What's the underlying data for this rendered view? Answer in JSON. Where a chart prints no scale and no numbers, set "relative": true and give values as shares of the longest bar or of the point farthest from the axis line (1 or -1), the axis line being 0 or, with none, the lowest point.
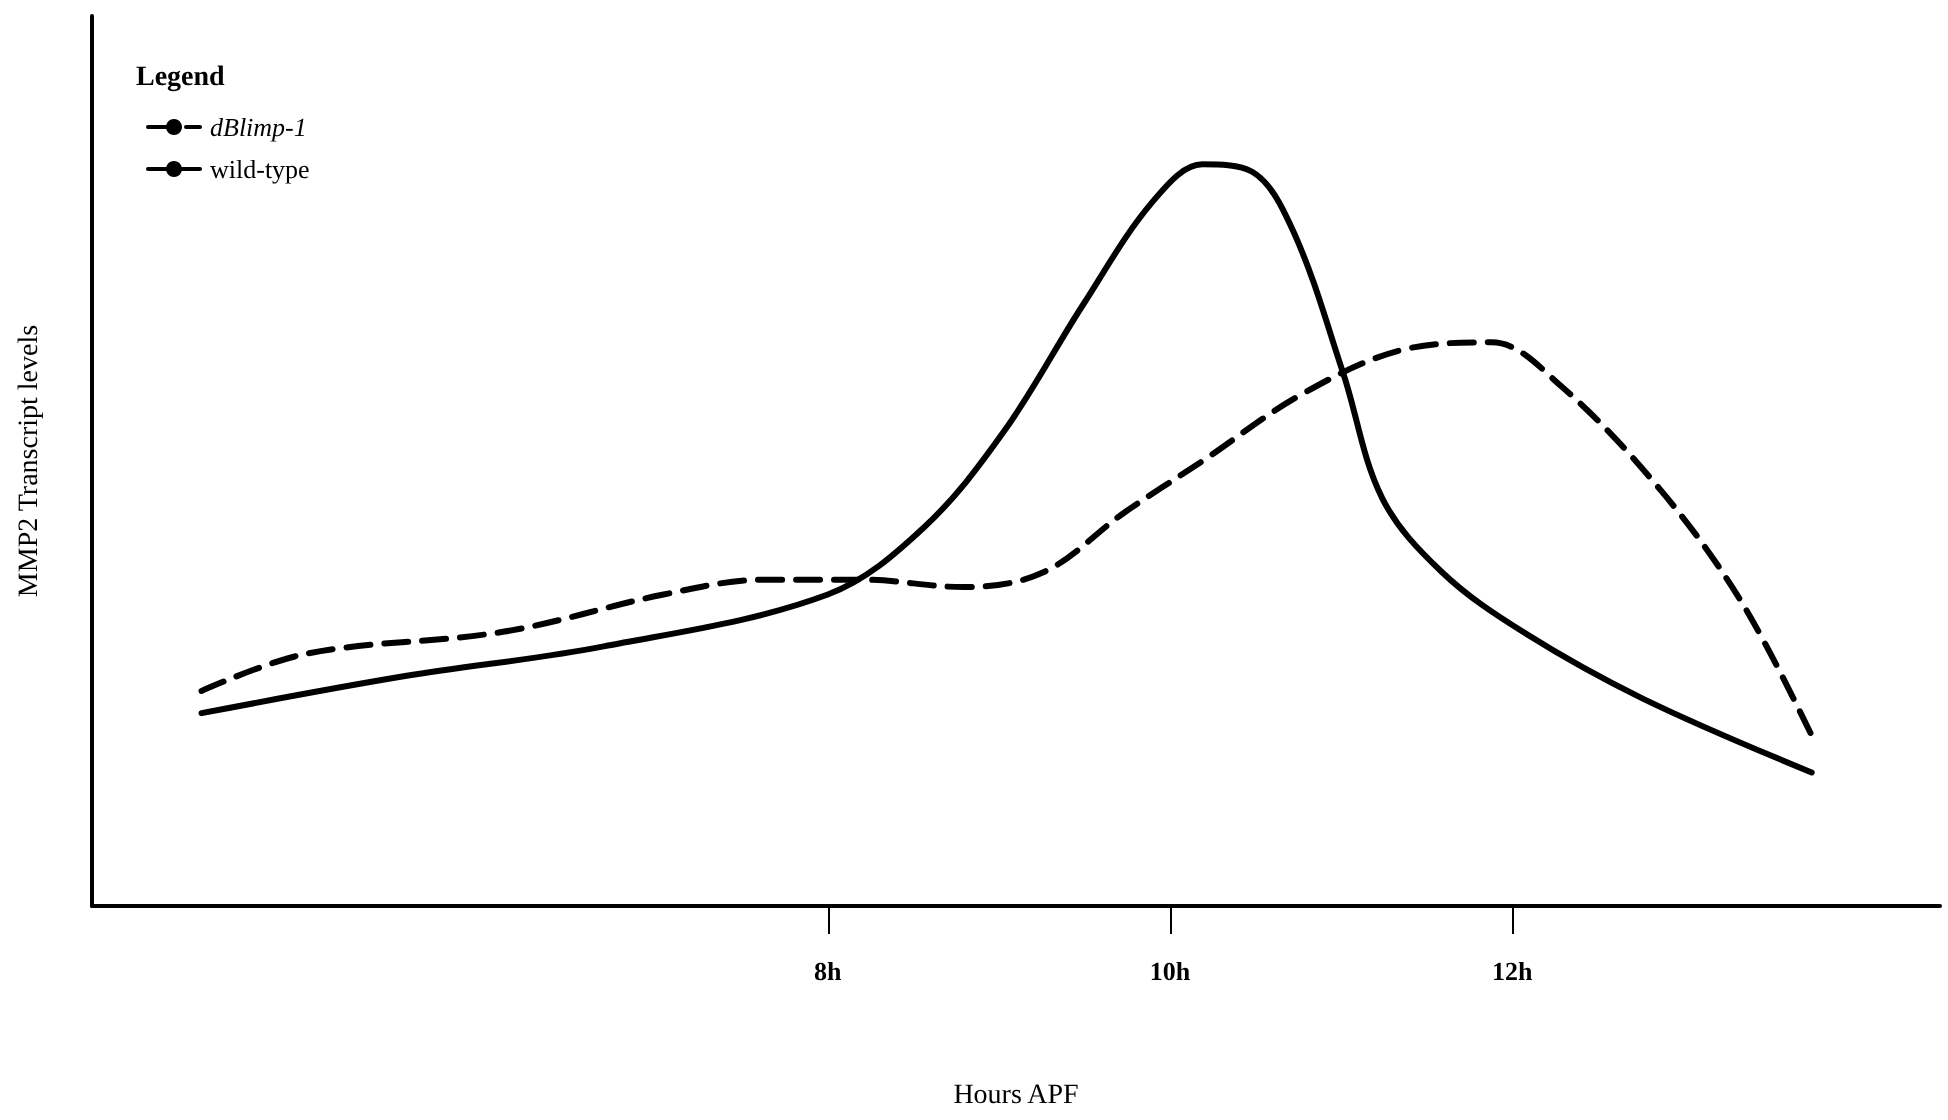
{
  "chart_data": {
    "type": "line",
    "relative": true,
    "xlabel": "Hours APF",
    "ylabel": "MMP2 Transcript levels",
    "legend_title": "Legend",
    "legend": "top left",
    "grid": false,
    "marker": "none",
    "xlim": [
      3.7,
      14.5
    ],
    "xticks": [
      {
        "value": 8,
        "label": "8h"
      },
      {
        "value": 10,
        "label": "10h"
      },
      {
        "value": 12,
        "label": "12h"
      }
    ],
    "series": [
      {
        "name": "dBlimp-1",
        "color": "#000000",
        "line_style": "dashed",
        "x": [
          4.34,
          4.95,
          6.11,
          7.04,
          7.63,
          8.21,
          8.79,
          9.26,
          9.73,
          10.19,
          10.77,
          11.36,
          11.88,
          12.29,
          12.87,
          13.34,
          13.75
        ],
        "values": [
          0.29,
          0.34,
          0.37,
          0.42,
          0.44,
          0.44,
          0.43,
          0.45,
          0.53,
          0.6,
          0.69,
          0.75,
          0.76,
          0.7,
          0.56,
          0.41,
          0.23
        ]
      },
      {
        "name": "wild-type",
        "color": "#000000",
        "line_style": "solid",
        "x": [
          4.34,
          5.53,
          6.69,
          8,
          8.56,
          9.03,
          9.49,
          9.9,
          10.19,
          10.48,
          10.72,
          11.01,
          11.24,
          11.59,
          12.06,
          12.76,
          13.75
        ],
        "values": [
          0.26,
          0.31,
          0.35,
          0.42,
          0.51,
          0.64,
          0.81,
          0.95,
          1.0,
          0.99,
          0.91,
          0.72,
          0.55,
          0.45,
          0.37,
          0.28,
          0.18
        ]
      }
    ]
  }
}
